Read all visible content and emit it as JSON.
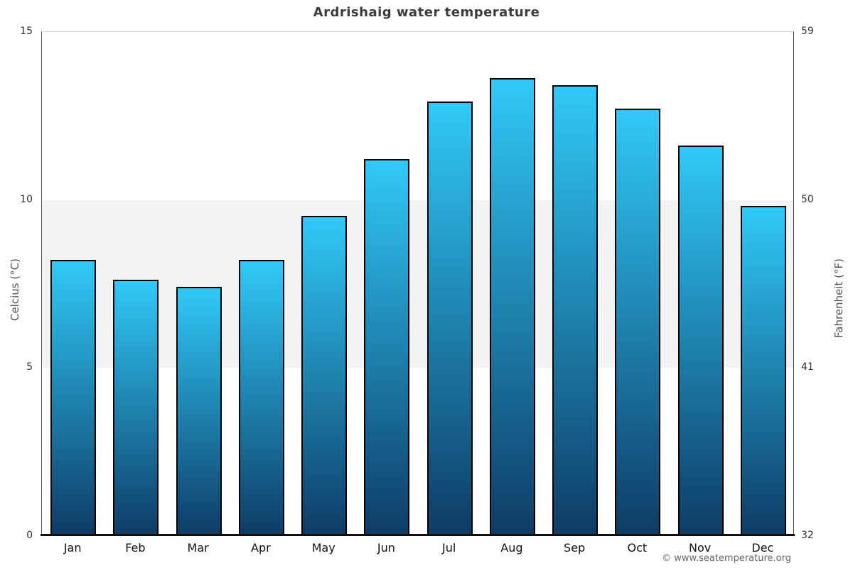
{
  "title": "Ardrishaig water temperature",
  "footer": {
    "credit": "© www.seatemperature.org"
  },
  "chart_data": {
    "type": "bar",
    "title": "Ardrishaig water temperature",
    "categories": [
      "Jan",
      "Feb",
      "Mar",
      "Apr",
      "May",
      "Jun",
      "Jul",
      "Aug",
      "Sep",
      "Oct",
      "Nov",
      "Dec"
    ],
    "values": [
      8.2,
      7.6,
      7.4,
      8.2,
      9.5,
      11.2,
      12.9,
      13.6,
      13.4,
      12.7,
      11.6,
      9.8
    ],
    "series_name": "Water temperature (°C)",
    "xlabel": "",
    "ylabel_left": "Celcius (°C)",
    "ylabel_right": "Fahrenheit (°F)",
    "ylim": [
      0,
      15
    ],
    "yticks_left": [
      0,
      5,
      10,
      15
    ],
    "yticks_right": [
      32,
      41,
      50,
      59
    ],
    "grid": "off",
    "legend": "none",
    "band": {
      "from": 5,
      "to": 10,
      "color": "#f3f3f3"
    },
    "colors": {
      "bar_top": "#31c9f8",
      "bar_bottom": "#0d3c66",
      "bar_border": "#000000",
      "axis_line": "#111111"
    }
  }
}
